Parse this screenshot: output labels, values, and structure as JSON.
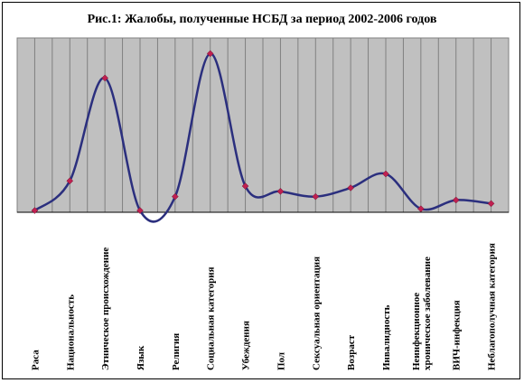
{
  "chart_data": {
    "type": "line",
    "title": "Рис.1: Жалобы, полученные НСБД за период 2002-2006 годов",
    "categories": [
      "Раса",
      "Национальность",
      "Этническое происхождение",
      "Язык",
      "Религия",
      "Социальная категория",
      "Убеждения",
      "Пол",
      "Сексуальная ориентация",
      "Возраст",
      "Инвалидность",
      "Неинфекционное хроническое заболевание",
      "ВИЧ-инфекция",
      "Неблагополучная категория"
    ],
    "values": [
      1,
      18,
      77,
      1,
      9,
      91,
      15,
      12,
      9,
      14,
      22,
      2,
      7,
      5
    ],
    "ylim": [
      0,
      100
    ],
    "grid": true,
    "colors": {
      "line": "#2b2f7e",
      "marker": "#c02050",
      "plot_bg": "#c0c0c0",
      "grid": "#808080"
    }
  }
}
